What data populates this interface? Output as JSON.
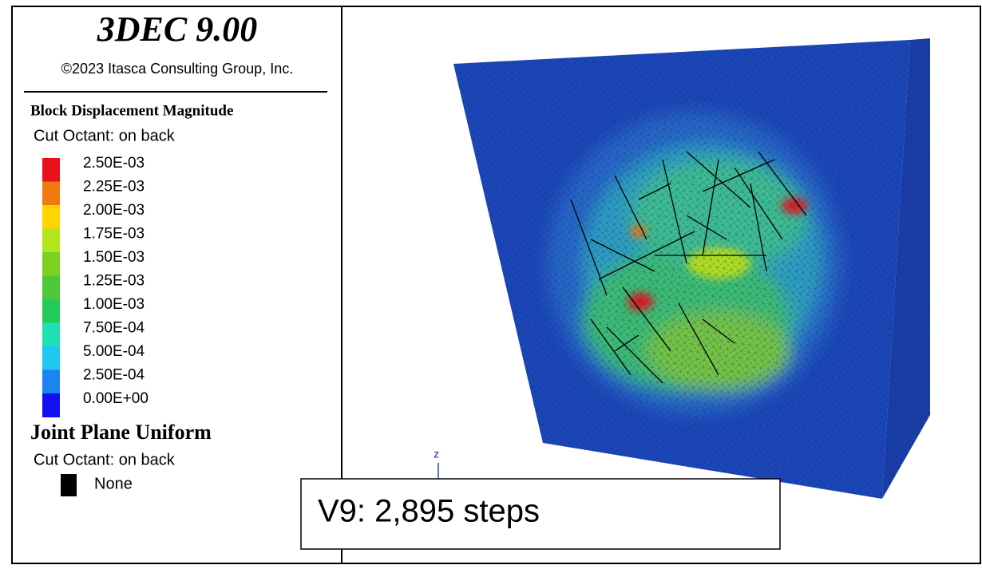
{
  "header": {
    "title": "3DEC 9.00",
    "copyright": "©2023 Itasca Consulting Group, Inc."
  },
  "legend": {
    "block": {
      "title": "Block Displacement Magnitude",
      "subtitle": "Cut Octant: on back",
      "entries": [
        {
          "label": "2.50E-03",
          "color": "#e8121a"
        },
        {
          "label": "2.25E-03",
          "color": "#f07a10"
        },
        {
          "label": "2.00E-03",
          "color": "#ffd400"
        },
        {
          "label": "1.75E-03",
          "color": "#b4e41c"
        },
        {
          "label": "1.50E-03",
          "color": "#7dd020"
        },
        {
          "label": "1.25E-03",
          "color": "#4cc838"
        },
        {
          "label": "1.00E-03",
          "color": "#22cc58"
        },
        {
          "label": "7.50E-04",
          "color": "#1ee0b4"
        },
        {
          "label": "5.00E-04",
          "color": "#1ec8f0"
        },
        {
          "label": "2.50E-04",
          "color": "#1a84f0"
        },
        {
          "label": "0.00E+00",
          "color": "#1010f0"
        }
      ]
    },
    "joint": {
      "title": "Joint Plane Uniform",
      "subtitle": "Cut Octant: on back",
      "entries": [
        {
          "label": "None",
          "color": "#000000"
        }
      ]
    }
  },
  "viewport": {
    "axis_label": "z",
    "overlay": "V9: 2,895 steps"
  }
}
